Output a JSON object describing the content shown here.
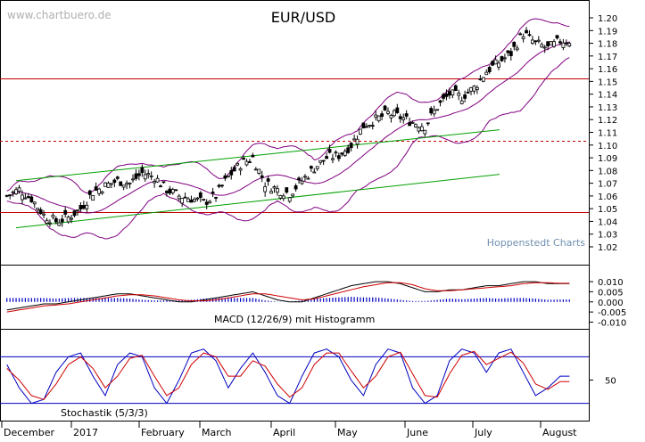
{
  "watermark": "www.chartbuero.de",
  "source_label": "Hoppenstedt Charts",
  "colors": {
    "candle": "#000000",
    "bollinger": "#800080",
    "trendline": "#00a000",
    "horizontal": "#c00000",
    "macd": "#000000",
    "signal": "#d00000",
    "histogram": "#0000c0",
    "stoch_k": "#0000c0",
    "stoch_d": "#d00000",
    "stoch_level": "#0000c0"
  },
  "chart_data": [
    {
      "type": "candlestick",
      "title": "EUR/USD",
      "x_labels": [
        "December",
        "2017",
        "February",
        "March",
        "April",
        "May",
        "June",
        "July",
        "August"
      ],
      "y_ticks": [
        "1.20",
        "1.19",
        "1.18",
        "1.17",
        "1.16",
        "1.15",
        "1.14",
        "1.13",
        "1.12",
        "1.11",
        "1.10",
        "1.09",
        "1.08",
        "1.07",
        "1.06",
        "1.05",
        "1.04",
        "1.03",
        "1.02"
      ],
      "ylim": [
        1.02,
        1.2
      ],
      "grid": false,
      "horizontal_lines": [
        {
          "value": 1.152,
          "style": "solid"
        },
        {
          "value": 1.103,
          "style": "dashed"
        },
        {
          "value": 1.047,
          "style": "solid"
        }
      ],
      "trendlines": [
        {
          "from": [
            "Nov 2016",
            1.035
          ],
          "to": [
            "Jul 2017",
            1.077
          ]
        },
        {
          "from": [
            "Nov 2016",
            1.072
          ],
          "to": [
            "Jul 2017",
            1.112
          ]
        }
      ],
      "weekly_close": [
        1.06,
        1.065,
        1.058,
        1.045,
        1.04,
        1.043,
        1.05,
        1.063,
        1.068,
        1.072,
        1.07,
        1.078,
        1.075,
        1.065,
        1.06,
        1.058,
        1.055,
        1.06,
        1.075,
        1.085,
        1.09,
        1.07,
        1.065,
        1.062,
        1.072,
        1.082,
        1.09,
        1.092,
        1.1,
        1.115,
        1.12,
        1.125,
        1.122,
        1.118,
        1.115,
        1.13,
        1.14,
        1.138,
        1.145,
        1.158,
        1.165,
        1.172,
        1.188,
        1.18,
        1.176,
        1.182
      ]
    },
    {
      "type": "line",
      "title": "MACD (12/26/9) mit Histogramm",
      "y_ticks": [
        "0.010",
        "0.005",
        "0.000",
        "-0.005",
        "-0.010"
      ],
      "ylim": [
        -0.012,
        0.014
      ],
      "macd": [
        -0.004,
        -0.003,
        -0.002,
        -0.001,
        -0.001,
        0.0,
        0.001,
        0.002,
        0.003,
        0.004,
        0.004,
        0.003,
        0.002,
        0.001,
        0.0,
        0.0,
        0.001,
        0.002,
        0.003,
        0.004,
        0.005,
        0.003,
        0.001,
        0.0,
        0.0,
        0.002,
        0.004,
        0.006,
        0.008,
        0.009,
        0.01,
        0.01,
        0.009,
        0.007,
        0.005,
        0.005,
        0.006,
        0.006,
        0.007,
        0.008,
        0.008,
        0.009,
        0.01,
        0.01,
        0.009,
        0.009
      ],
      "signal": [
        -0.005,
        -0.004,
        -0.003,
        -0.002,
        -0.0015,
        -0.001,
        0.0,
        0.001,
        0.002,
        0.003,
        0.0035,
        0.0035,
        0.003,
        0.002,
        0.001,
        0.0005,
        0.0005,
        0.001,
        0.002,
        0.003,
        0.004,
        0.004,
        0.003,
        0.002,
        0.001,
        0.0015,
        0.003,
        0.0045,
        0.006,
        0.0075,
        0.0085,
        0.0095,
        0.0095,
        0.0085,
        0.0065,
        0.0055,
        0.0055,
        0.006,
        0.0065,
        0.007,
        0.0075,
        0.008,
        0.009,
        0.0095,
        0.0095,
        0.0092
      ]
    },
    {
      "type": "line",
      "title": "Stochastik (5/3/3)",
      "y_ticks": [
        "50"
      ],
      "ylim": [
        0,
        100
      ],
      "levels": [
        80,
        20
      ],
      "k": [
        70,
        40,
        20,
        25,
        60,
        80,
        85,
        55,
        30,
        70,
        85,
        80,
        40,
        20,
        50,
        85,
        90,
        75,
        40,
        65,
        85,
        60,
        30,
        20,
        55,
        85,
        90,
        80,
        50,
        30,
        70,
        90,
        85,
        40,
        20,
        30,
        75,
        90,
        85,
        60,
        85,
        90,
        60,
        30,
        40,
        55
      ],
      "d": [
        65,
        50,
        30,
        25,
        45,
        70,
        80,
        65,
        40,
        55,
        78,
        82,
        55,
        30,
        40,
        70,
        85,
        80,
        55,
        55,
        75,
        68,
        45,
        28,
        40,
        70,
        85,
        85,
        62,
        40,
        55,
        80,
        86,
        58,
        30,
        28,
        58,
        82,
        87,
        70,
        78,
        86,
        72,
        45,
        38,
        48
      ]
    }
  ]
}
